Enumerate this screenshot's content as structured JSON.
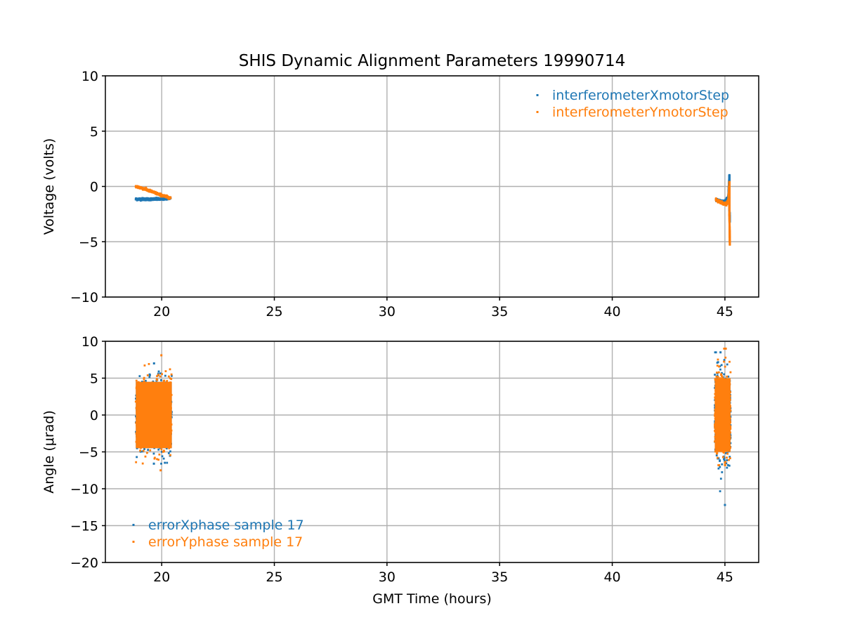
{
  "figure": {
    "title": "SHIS Dynamic Alignment Parameters 19990714"
  },
  "chart_data": [
    {
      "type": "scatter",
      "title": "SHIS Dynamic Alignment Parameters 19990714",
      "xlabel": "",
      "ylabel": "Voltage (volts)",
      "xlim": [
        17.5,
        46.5
      ],
      "ylim": [
        -10,
        10
      ],
      "xticks": [
        20,
        25,
        30,
        35,
        40,
        45
      ],
      "yticks": [
        -10,
        -5,
        0,
        5,
        10
      ],
      "xtick_labels": [
        "20",
        "25",
        "30",
        "35",
        "40",
        "45"
      ],
      "ytick_labels": [
        "−10",
        "−5",
        "0",
        "5",
        "10"
      ],
      "grid": true,
      "legend_position": "upper right",
      "series": [
        {
          "name": "interferometerXmotorStep",
          "color": "#1f77b4",
          "segments": [
            {
              "x": [
                18.85,
                19.2,
                19.6,
                20.0,
                20.4
              ],
              "y": [
                -1.15,
                -1.15,
                -1.15,
                -1.15,
                -1.05
              ]
            },
            {
              "x": [
                44.6,
                44.8,
                45.0,
                45.15,
                45.2,
                45.2,
                45.2,
                45.22
              ],
              "y": [
                -1.2,
                -1.3,
                -1.4,
                -1.0,
                1.0,
                0.0,
                -2.0,
                -3.1
              ]
            }
          ]
        },
        {
          "name": "interferometerYmotorStep",
          "color": "#ff7f0e",
          "segments": [
            {
              "x": [
                18.85,
                19.2,
                19.6,
                20.0,
                20.4
              ],
              "y": [
                0.0,
                -0.2,
                -0.5,
                -0.8,
                -1.05
              ]
            },
            {
              "x": [
                44.6,
                44.8,
                45.0,
                45.15,
                45.2,
                45.2,
                45.22
              ],
              "y": [
                -1.2,
                -1.4,
                -1.6,
                -1.4,
                0.4,
                -2.6,
                -5.3
              ]
            }
          ]
        }
      ]
    },
    {
      "type": "scatter",
      "title": "",
      "xlabel": "GMT Time (hours)",
      "ylabel": "Angle (μrad)",
      "xlim": [
        17.5,
        46.5
      ],
      "ylim": [
        -20,
        10
      ],
      "xticks": [
        20,
        25,
        30,
        35,
        40,
        45
      ],
      "yticks": [
        -20,
        -15,
        -10,
        -5,
        0,
        5,
        10
      ],
      "xtick_labels": [
        "20",
        "25",
        "30",
        "35",
        "40",
        "45"
      ],
      "ytick_labels": [
        "−20",
        "−15",
        "−10",
        "−5",
        "0",
        "5",
        "10"
      ],
      "grid": true,
      "legend_position": "lower left",
      "series": [
        {
          "name": "errorXphase sample 17",
          "color": "#1f77b4",
          "clusters": [
            {
              "x_range": [
                18.85,
                20.45
              ],
              "y_band": [
                -4.5,
                4.5
              ],
              "y_extremes": [
                -6.6,
                7.0
              ]
            },
            {
              "x_range": [
                44.55,
                45.25
              ],
              "y_band": [
                -5.0,
                5.0
              ],
              "y_extremes": [
                -12.2,
                8.5
              ]
            }
          ]
        },
        {
          "name": "errorYphase sample 17",
          "color": "#ff7f0e",
          "clusters": [
            {
              "x_range": [
                18.85,
                20.45
              ],
              "y_band": [
                -4.5,
                4.5
              ],
              "y_extremes": [
                -7.5,
                8.1
              ]
            },
            {
              "x_range": [
                44.55,
                45.25
              ],
              "y_band": [
                -5.0,
                5.0
              ],
              "y_extremes": [
                -6.8,
                9.0
              ]
            }
          ]
        }
      ]
    }
  ]
}
